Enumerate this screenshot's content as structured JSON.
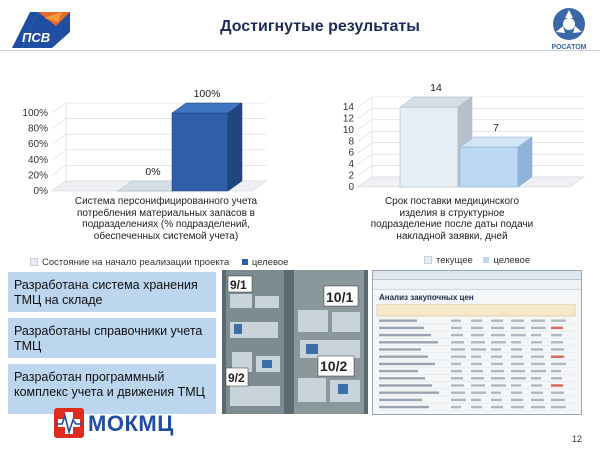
{
  "header": {
    "title": "Достигнутые результаты",
    "rosatom_label": "РОСАТОМ"
  },
  "colors": {
    "title": "#1d2b5a",
    "current_series": "#e6edf5",
    "target_series": "#2e5fa8",
    "target_series_right": "#bcd8f3",
    "box_fill": "#bcd6ef",
    "mokmc_red": "#e02b20",
    "mokmc_blue": "#1f4ea3"
  },
  "chart_data": [
    {
      "type": "bar",
      "categories": [
        "Система персонифицированного учета потребления материальных запасов в подразделениях (% подразделений, обеспеченных системой учета)"
      ],
      "series": [
        {
          "name": "Состояние на начало реализации проекта",
          "values": [
            0
          ]
        },
        {
          "name": "целевое",
          "values": [
            100
          ]
        }
      ],
      "data_labels": [
        "0%",
        "100%"
      ],
      "y_ticks": [
        "0%",
        "20%",
        "40%",
        "60%",
        "80%",
        "100%"
      ],
      "ylim": [
        0,
        100
      ],
      "grid": true,
      "legend": "bottom"
    },
    {
      "type": "bar",
      "categories": [
        "Срок поставки медицинского изделия в структурное подразделение после даты подачи накладной заявки, дней"
      ],
      "series": [
        {
          "name": "текущее",
          "values": [
            14
          ]
        },
        {
          "name": "целевое",
          "values": [
            7
          ]
        }
      ],
      "data_labels": [
        "14",
        "7"
      ],
      "y_ticks": [
        "0",
        "2",
        "4",
        "6",
        "8",
        "10",
        "12",
        "14"
      ],
      "ylim": [
        0,
        14
      ],
      "grid": true,
      "legend": "bottom"
    }
  ],
  "chart1": {
    "caption": "Система персонифицированного учета потребления материальных запасов в подразделениях (% подразделений, обеспеченных системой учета)",
    "legend_current": "Состояние на начало реализации проекта",
    "legend_target": "целевое"
  },
  "chart2": {
    "caption": "Срок поставки медицинского изделия в структурное подразделение после даты подачи накладной заявки, дней",
    "legend_current": "текущее",
    "legend_target": "целевое"
  },
  "results": [
    "Разработана система хранения ТМЦ на складе",
    "Разработаны справочники учета ТМЦ",
    "Разработан программный комплекс учета и движения ТМЦ"
  ],
  "photo": {
    "shelf_labels": [
      "9/1",
      "10/1",
      "9/2",
      "10/2"
    ]
  },
  "screenshot": {
    "window_title": "Анализ закупочных цен",
    "report_title": "Анализ закупочных цен"
  },
  "footer": {
    "logo_text": "МОКМЦ",
    "page_number": "12"
  }
}
